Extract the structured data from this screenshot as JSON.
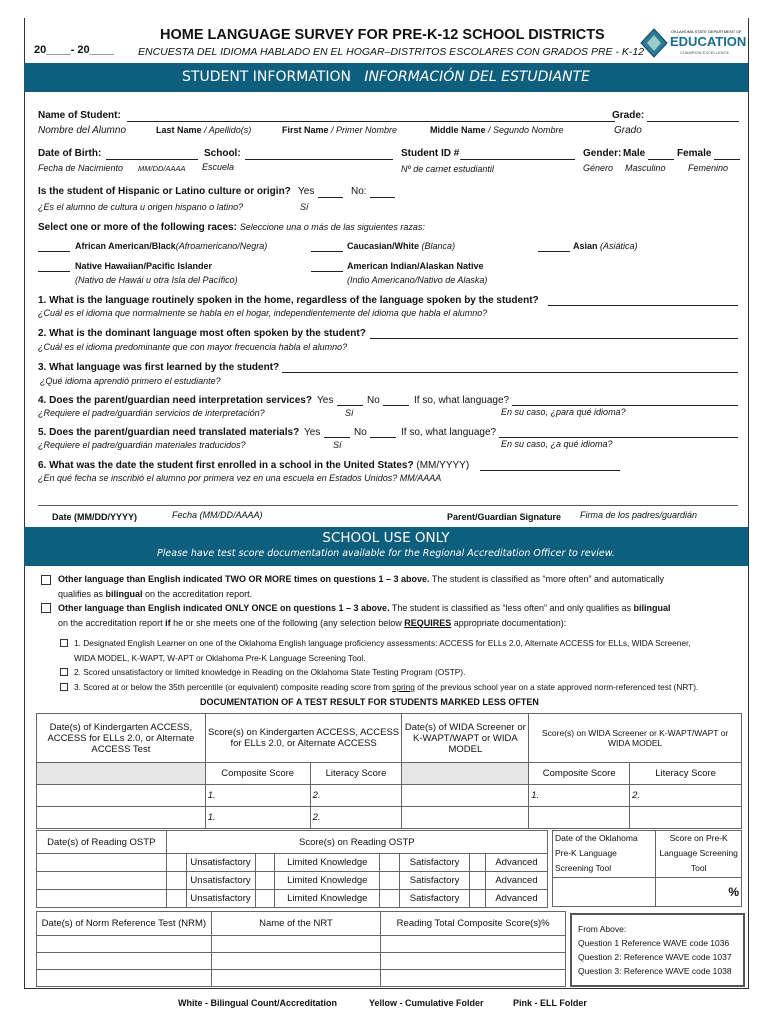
{
  "header": {
    "year": "20____- 20____",
    "title": "HOME LANGUAGE SURVEY FOR PRE-K-12 SCHOOL DISTRICTS",
    "subtitle": "ENCUESTA DEL IDIOMA  HABLADO EN EL HOGAR–DISTRITOS ESCOLARES CON GRADOS  PRE - K-12",
    "logo_top": "OKLAHOMA STATE DEPARTMENT OF",
    "logo_main": "EDUCATION",
    "logo_sub": "CHAMPION EXCELLENCE"
  },
  "colors": {
    "banner": "#0e5f7e"
  },
  "student_banner": {
    "en": "STUDENT INFORMATION",
    "es": "INFORMACIÓN DEL ESTUDIANTE"
  },
  "student": {
    "name_label": "Name of Student:",
    "name_es": "Nombre del Alumno",
    "grade_label": "Grade:",
    "grade_es": "Grado",
    "last_b": "Last Name",
    "last_es": " / Apellido(s)",
    "first_b": "First Name",
    "first_es": " / Primer Nombre",
    "middle_b": "Middle Name",
    "middle_es": " / Segundo Nombre",
    "dob_label": "Date of Birth:",
    "dob_es": "Fecha de Nacimiento",
    "dob_fmt": "MM/DD/AAAA",
    "school_label": "School:",
    "school_es": "Escuela",
    "id_label": "Student ID #",
    "id_es": "Nº de carnet estudiantil",
    "gender_label": "Gender:",
    "male": "Male",
    "female": "Female",
    "gender_es": "Género",
    "male_es": "Masculino",
    "female_es": "Femenino",
    "hisp_q": "Is the student of Hispanic or Latino culture or origin?",
    "yes": "Yes",
    "no": "No:",
    "hisp_es": "¿Es el alumno de cultura u origen hispano o latino?",
    "si": "Sí",
    "races_label": "Select one or more of the following races:",
    "races_es": "Seleccione una o más de las siguientes razas:",
    "races": [
      {
        "en": "African American/Black",
        "es": "(Afroamericano/Negra)"
      },
      {
        "en": "Caucasian/White",
        "es": "(Blanca)"
      },
      {
        "en": "Asian",
        "es": "(Asiática)"
      },
      {
        "en": "Native Hawaiian/Pacific Islander",
        "es": "(Nativo de Hawái u otra Isla del Pacífico)"
      },
      {
        "en": "American Indian/Alaskan Native",
        "es": "(Indio Americano/Nativo de Alaska)"
      }
    ]
  },
  "questions": [
    {
      "en": "1. What is the language routinely spoken in the home, regardless of the language spoken by the student?",
      "es": "¿Cuál es el idioma que normalmente se habla en el hogar, independientemente del idioma que habla el alumno?"
    },
    {
      "en": "2. What is the dominant language most often spoken by the student?",
      "es": "¿Cuál es el idioma predominante que con mayor frecuencia habla el alumno?"
    },
    {
      "en": "3. What language was first learned by the student?",
      "es": "¿Qué idioma aprendió primero el estudiante?"
    },
    {
      "en": "4. Does the parent/guardian need interpretation services?",
      "es": "¿Requiere el padre/guardián servicios de interpretación?",
      "yes": "Yes",
      "no": "No",
      "if": "If so, what language?",
      "si": "Sí",
      "if_es": "En su caso, ¿para qué idioma?"
    },
    {
      "en": "5. Does the parent/guardian need translated materials?",
      "es": "¿Requiere el padre/guardián materiales traducidos?",
      "yes": "Yes",
      "no": "No",
      "if": "If so, what language?",
      "si": "Sí",
      "if_es": "En su caso, ¿a qué idioma?"
    },
    {
      "en": "6. What was the date the student first enrolled in a school in the United States?",
      "fmt": "(MM/YYYY)",
      "es": "¿En qué fecha se inscribió el alumno por primera vez en una escuela en Estados Unidos? MM/AAAA"
    }
  ],
  "signature": {
    "date": "Date (MM/DD/YYYY)",
    "date_es": "Fecha (MM/DD/AAAA)",
    "sig": "Parent/Guardian Signature",
    "sig_es": "Firma de los padres/guardián"
  },
  "school_banner": {
    "title": "SCHOOL USE ONLY",
    "note": "Please have test score documentation available for the Regional Accreditation Officer to review."
  },
  "school": {
    "opt1_b": "Other language than English indicated TWO OR MORE times on questions 1 – 3 above.",
    "opt1": " The student is classified as “more often” and automatically",
    "opt1_2a": "qualifies as ",
    "opt1_2b": "bilingual",
    "opt1_2c": " on the accreditation report.",
    "opt2_b": "Other language than English indicated ONLY ONCE on questions 1 – 3 above.",
    "opt2": " The student is classified as “less often” and only qualifies as ",
    "opt2_bil": "bilingual",
    "opt2_2a": "on the accreditation report ",
    "opt2_2b": "if",
    "opt2_2c": " he or she meets one of the following (any selection below ",
    "opt2_req": "REQUIRES",
    "opt2_2d": " appropriate documentation):",
    "sub1": "1. Designated English Learner on one of the Oklahoma English language proficiency assessments: ACCESS for ELLs 2.0, Alternate ACCESS for ELLs, WIDA Screener,",
    "sub1b": "WIDA MODEL, K-WAPT, W-APT or Oklahoma Pre-K Language Screening Tool.",
    "sub2": "2. Scored unsatisfactory or limited knowledge in Reading on the Oklahoma State Testing Program (OSTP).",
    "sub3a": "3. Scored at or below the 35th percentile (or equivalent) composite reading score from ",
    "sub3u": "spring",
    "sub3b": " of the previous school year on a state approved norm-referenced test (NRT).",
    "doc_heading": "DOCUMENTATION OF A TEST RESULT FOR STUDENTS MARKED LESS OFTEN"
  },
  "table1": {
    "h1": "Date(s) of Kindergarten ACCESS, ACCESS for ELLs 2.0, or Alternate ACCESS Test",
    "h2": "Score(s) on Kindergarten ACCESS, ACCESS for ELLs 2.0, or Alternate ACCESS",
    "h3": "Date(s) of WIDA Screener or K-WAPT/WAPT or WIDA MODEL",
    "h4": "Score(s) on WIDA Screener or K-WAPT/WAPT or WIDA MODEL",
    "composite": "Composite Score",
    "literacy": "Literacy Score",
    "n1": "1.",
    "n2": "2."
  },
  "table2": {
    "h1": "Date(s) of Reading OSTP",
    "h2": "Score(s) on Reading OSTP",
    "levels": [
      "Unsatisfactory",
      "Limited Knowledge",
      "Satisfactory",
      "Advanced"
    ]
  },
  "prek": {
    "h1": "Date of the Oklahoma Pre-K Language Screening Tool",
    "h2": "Score on Pre-K Language Screening Tool",
    "pct": "%"
  },
  "table3": {
    "h1": "Date(s) of Norm Reference Test (NRM)",
    "h2": "Name of the NRT",
    "h3": "Reading Total Composite Score(s)%"
  },
  "from_above": {
    "title": "From Above:",
    "lines": [
      "Question 1 Reference WAVE code 1036",
      "Question 2: Reference WAVE code 1037",
      "Question 3: Reference WAVE code 1038"
    ]
  },
  "footer": [
    "White - Bilingual Count/Accreditation",
    "Yellow - Cumulative Folder",
    "Pink - ELL Folder"
  ]
}
